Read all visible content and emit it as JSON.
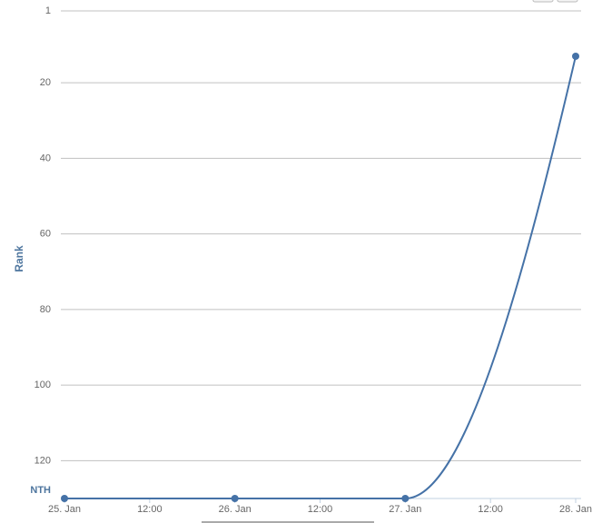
{
  "chart_data": {
    "type": "line",
    "y_label": "Rank",
    "x": [
      "25. Jan",
      "26. Jan",
      "27. Jan",
      "28. Jan"
    ],
    "xticks": [
      "25. Jan",
      "12:00",
      "26. Jan",
      "12:00",
      "27. Jan",
      "12:00",
      "28. Jan"
    ],
    "series": [
      {
        "color": "#4572a7",
        "values": [
          130,
          130,
          130,
          13
        ]
      }
    ],
    "ylim": [
      1,
      130
    ],
    "y_reversed": true,
    "yticks": [
      1,
      20,
      40,
      60,
      80,
      100,
      120,
      {
        "value": 130,
        "label": "NTH"
      }
    ],
    "grid": true
  }
}
